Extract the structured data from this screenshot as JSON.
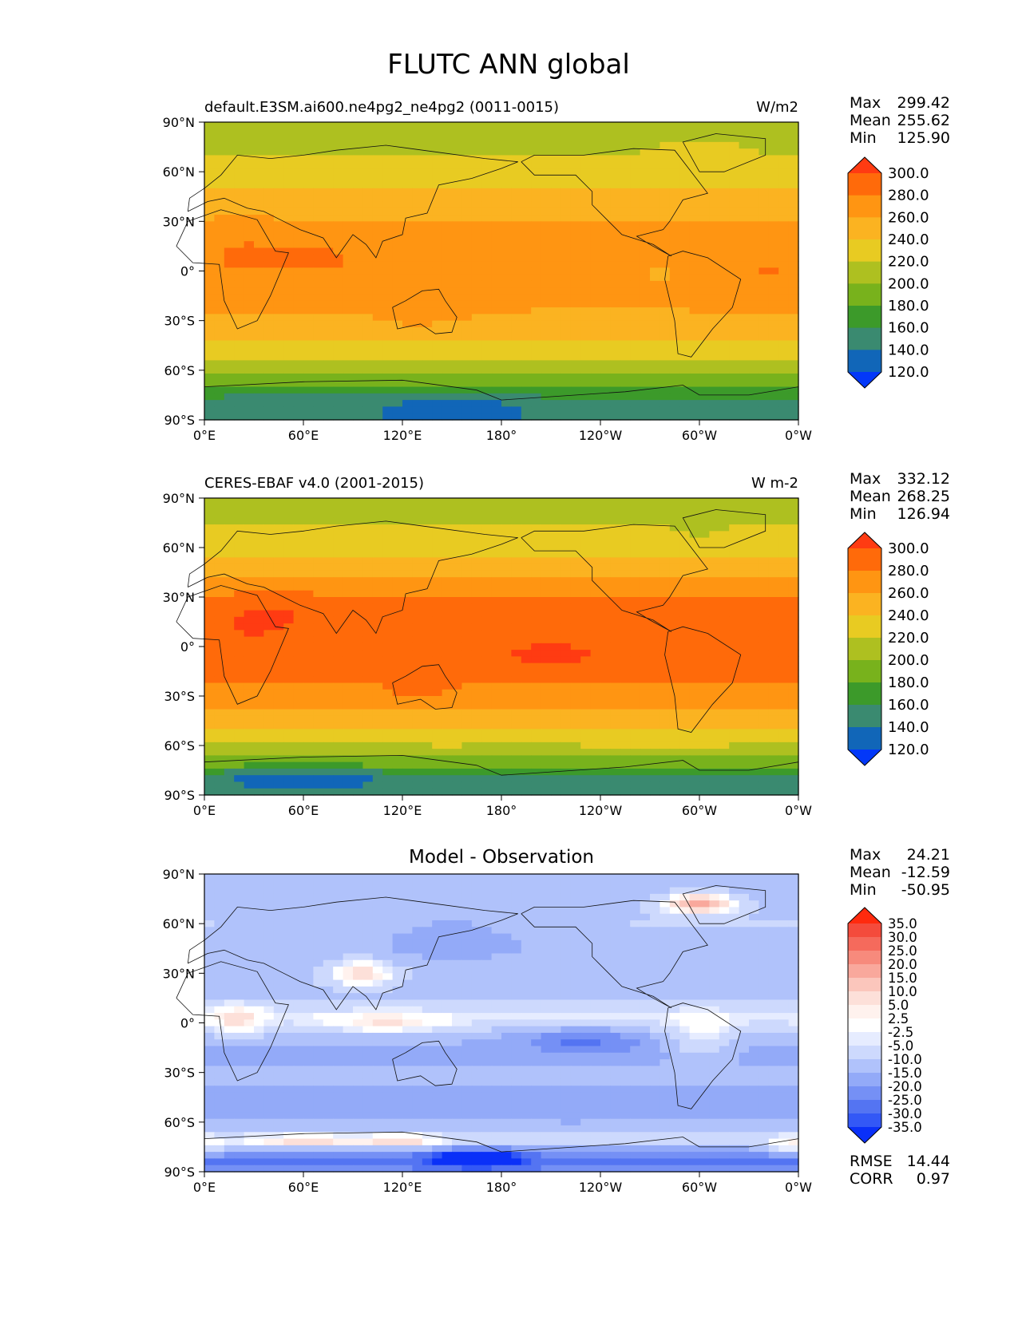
{
  "chart_data": {
    "type": "heatmap",
    "title": "FLUTC ANN global",
    "x_ticks": [
      "0°E",
      "60°E",
      "120°E",
      "180°",
      "120°W",
      "60°W",
      "0°W"
    ],
    "y_ticks": [
      "90°N",
      "60°N",
      "30°N",
      "0°",
      "30°S",
      "60°S",
      "90°S"
    ],
    "x_range": [
      0,
      360
    ],
    "y_range": [
      -90,
      90
    ],
    "panels": [
      {
        "name": "model",
        "title_left": "default.E3SM.ai600.ne4pg2_ne4pg2 (0011-0015)",
        "title_right": "W/m2",
        "stats": {
          "max_label": "Max",
          "max": "299.42",
          "mean_label": "Mean",
          "mean": "255.62",
          "min_label": "Min",
          "min": "125.90"
        },
        "colorbar": {
          "labels": [
            "300.0",
            "280.0",
            "260.0",
            "240.0",
            "220.0",
            "200.0",
            "180.0",
            "160.0",
            "140.0",
            "120.0"
          ],
          "colors": [
            "#ff3b12",
            "#ff6a0a",
            "#ff9512",
            "#fbb321",
            "#e8cb22",
            "#aec020",
            "#78b21c",
            "#3c9a2a",
            "#3a8a70",
            "#1166b8",
            "#0338f8"
          ],
          "levels": [
            120,
            140,
            160,
            180,
            200,
            220,
            240,
            260,
            280,
            300
          ]
        },
        "lat_profile": [
          [
            90,
            205
          ],
          [
            75,
            215
          ],
          [
            62,
            226
          ],
          [
            50,
            238
          ],
          [
            40,
            250
          ],
          [
            30,
            260
          ],
          [
            15,
            268
          ],
          [
            0,
            272
          ],
          [
            -15,
            266
          ],
          [
            -30,
            256
          ],
          [
            -40,
            245
          ],
          [
            -50,
            230
          ],
          [
            -60,
            210
          ],
          [
            -68,
            190
          ],
          [
            -75,
            165
          ],
          [
            -82,
            145
          ],
          [
            -90,
            140
          ]
        ]
      },
      {
        "name": "observation",
        "title_left": "CERES-EBAF v4.0 (2001-2015)",
        "title_right": "W m-2",
        "stats": {
          "max_label": "Max",
          "max": "332.12",
          "mean_label": "Mean",
          "mean": "268.25",
          "min_label": "Min",
          "min": "126.94"
        },
        "colorbar": {
          "labels": [
            "300.0",
            "280.0",
            "260.0",
            "240.0",
            "220.0",
            "200.0",
            "180.0",
            "160.0",
            "140.0",
            "120.0"
          ],
          "colors": [
            "#ff3b12",
            "#ff6a0a",
            "#ff9512",
            "#fbb321",
            "#e8cb22",
            "#aec020",
            "#78b21c",
            "#3c9a2a",
            "#3a8a70",
            "#1166b8",
            "#0338f8"
          ],
          "levels": [
            120,
            140,
            160,
            180,
            200,
            220,
            240,
            260,
            280,
            300
          ]
        },
        "lat_profile": [
          [
            90,
            208
          ],
          [
            75,
            218
          ],
          [
            62,
            232
          ],
          [
            50,
            245
          ],
          [
            40,
            262
          ],
          [
            30,
            282
          ],
          [
            15,
            290
          ],
          [
            0,
            292
          ],
          [
            -15,
            285
          ],
          [
            -30,
            272
          ],
          [
            -40,
            258
          ],
          [
            -50,
            240
          ],
          [
            -60,
            220
          ],
          [
            -68,
            200
          ],
          [
            -75,
            170
          ],
          [
            -82,
            150
          ],
          [
            -90,
            155
          ]
        ]
      },
      {
        "name": "difference",
        "title_center": "Model - Observation",
        "stats": {
          "max_label": "Max",
          "max": "24.21",
          "mean_label": "Mean",
          "mean": "-12.59",
          "min_label": "Min",
          "min": "-50.95"
        },
        "colorbar": {
          "labels": [
            "35.0",
            "30.0",
            "25.0",
            "20.0",
            "15.0",
            "10.0",
            "5.0",
            "2.5",
            "-2.5",
            "-5.0",
            "-10.0",
            "-15.0",
            "-20.0",
            "-25.0",
            "-30.0",
            "-35.0"
          ],
          "colors": [
            "#ff2a0e",
            "#f44b3c",
            "#f56a5c",
            "#f78a7c",
            "#f9a89c",
            "#fbc6bc",
            "#fde0d9",
            "#fff2ee",
            "#ffffff",
            "#e6ecff",
            "#cdd9fd",
            "#b0c2fb",
            "#93aaf8",
            "#7590f5",
            "#5474f2",
            "#3358f6",
            "#0a30f8"
          ],
          "levels": [
            -35,
            -30,
            -25,
            -20,
            -15,
            -10,
            -5,
            -2.5,
            2.5,
            5,
            10,
            15,
            20,
            25,
            30,
            35
          ]
        },
        "lat_profile": [
          [
            90,
            -14
          ],
          [
            75,
            -12
          ],
          [
            60,
            -10
          ],
          [
            45,
            -14
          ],
          [
            30,
            -12
          ],
          [
            15,
            -12
          ],
          [
            5,
            -4
          ],
          [
            0,
            -6
          ],
          [
            -10,
            -14
          ],
          [
            -20,
            -17
          ],
          [
            -30,
            -14
          ],
          [
            -45,
            -16
          ],
          [
            -60,
            -15
          ],
          [
            -70,
            -6
          ],
          [
            -78,
            -20
          ],
          [
            -85,
            -28
          ],
          [
            -90,
            -22
          ]
        ],
        "rmse_label": "RMSE",
        "rmse": "14.44",
        "corr_label": "CORR",
        "corr": "0.97"
      }
    ]
  }
}
